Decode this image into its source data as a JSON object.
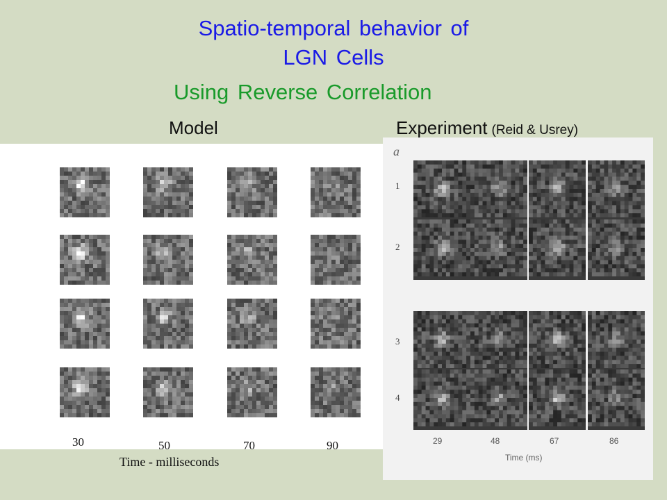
{
  "title_line1": "Spatio-temporal behavior of",
  "title_line2": "LGN Cells",
  "subtitle": "Using Reverse Correlation",
  "model_heading": "Model",
  "experiment_heading": "Experiment",
  "experiment_citation": "(Reid & Usrey)",
  "model": {
    "rows": 4,
    "time_labels": [
      "30",
      "50",
      "70",
      "90"
    ],
    "axis_label": "Time - milliseconds"
  },
  "experiment": {
    "panel_letter": "a",
    "row_labels": [
      "1",
      "2",
      "3",
      "4"
    ],
    "time_labels": [
      "29",
      "48",
      "67",
      "86"
    ],
    "axis_label": "Time (ms)"
  }
}
